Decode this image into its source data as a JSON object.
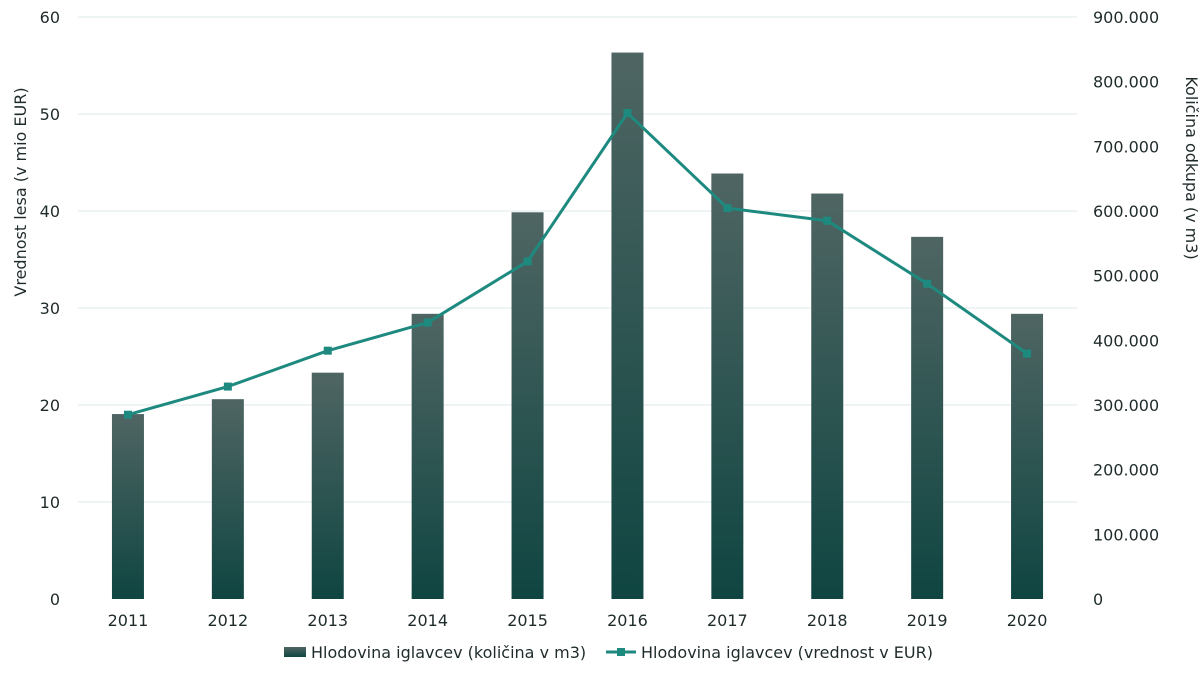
{
  "chart_data": {
    "type": "bar",
    "categories": [
      "2011",
      "2012",
      "2013",
      "2014",
      "2015",
      "2016",
      "2017",
      "2018",
      "2019",
      "2020"
    ],
    "series": [
      {
        "name": "Hlodovina iglavcev (količina v m3)",
        "type": "bar",
        "axis": "right",
        "values": [
          286000,
          309000,
          350000,
          441000,
          598000,
          845000,
          658000,
          627000,
          560000,
          441000
        ]
      },
      {
        "name": "Hlodovina iglavcev (vrednost v EUR)",
        "type": "line",
        "axis": "left",
        "values": [
          19.0,
          21.9,
          25.6,
          28.5,
          34.8,
          50.1,
          40.3,
          39.0,
          32.5,
          25.3
        ]
      }
    ],
    "ylabel_left": "Vrednost lesa (v mio EUR)",
    "ylabel_right": "Količina odkupa (v m3)",
    "ylim_left": [
      0,
      60
    ],
    "ylim_right": [
      0,
      900000
    ],
    "yticks_left": [
      "0",
      "10",
      "20",
      "30",
      "40",
      "50",
      "60"
    ],
    "yticks_right": [
      "0",
      "100.000",
      "200.000",
      "300.000",
      "400.000",
      "500.000",
      "600.000",
      "700.000",
      "800.000",
      "900.000"
    ],
    "legend_position": "bottom",
    "grid": true,
    "colors": {
      "bar_top": "#4f6563",
      "bar_bottom": "#0f4541",
      "line": "#1e8a7f",
      "grid": "#dde8e8",
      "text": "#1f2b2b"
    }
  }
}
